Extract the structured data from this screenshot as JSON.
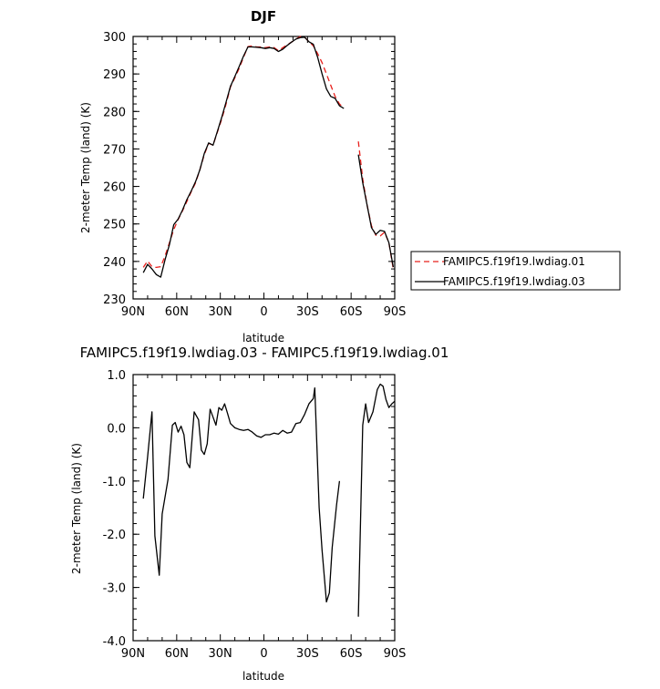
{
  "chart_data": [
    {
      "type": "line",
      "title": "DJF",
      "xlabel": "latitude",
      "ylabel": "2-meter Temp (land) (K)",
      "xlim": [
        90,
        -90
      ],
      "ylim": [
        230,
        300
      ],
      "x_ticks": [
        90,
        60,
        30,
        0,
        -30,
        -60,
        -90
      ],
      "x_tick_labels": [
        "90N",
        "60N",
        "30N",
        "0",
        "30S",
        "60S",
        "90S"
      ],
      "y_ticks": [
        230,
        240,
        250,
        260,
        270,
        280,
        290,
        300
      ],
      "y_tick_labels": [
        "230",
        "240",
        "250",
        "260",
        "270",
        "280",
        "290",
        "300"
      ],
      "legend_position": "right",
      "series": [
        {
          "name": "FAMIPC5.f19f19.lwdiag.01",
          "color": "#e8201c",
          "dash": true,
          "segments": [
            [
              [
                83,
                238.4
              ],
              [
                80,
                240.1
              ],
              [
                77,
                238.6
              ],
              [
                74,
                238.4
              ],
              [
                71,
                238.6
              ],
              [
                68,
                241.5
              ],
              [
                65,
                245.0
              ],
              [
                62,
                248.5
              ],
              [
                59,
                251.2
              ],
              [
                56,
                253.5
              ],
              [
                53,
                256.0
              ],
              [
                50,
                258.6
              ],
              [
                47,
                261.0
              ],
              [
                44,
                264.5
              ],
              [
                41,
                268.5
              ],
              [
                38,
                271.5
              ],
              [
                35,
                271.0
              ],
              [
                32,
                274.5
              ],
              [
                29,
                278.0
              ],
              [
                26,
                282.0
              ],
              [
                23,
                286.5
              ],
              [
                20,
                289.0
              ],
              [
                17,
                291.5
              ],
              [
                14,
                294.5
              ],
              [
                11,
                297.3
              ],
              [
                8,
                297.5
              ],
              [
                5,
                297.2
              ],
              [
                2,
                297.2
              ],
              [
                -1,
                297.0
              ],
              [
                -4,
                297.2
              ],
              [
                -7,
                297.0
              ],
              [
                -10,
                296.2
              ],
              [
                -13,
                297.0
              ],
              [
                -16,
                297.8
              ],
              [
                -19,
                298.5
              ],
              [
                -22,
                299.3
              ],
              [
                -25,
                300.0
              ],
              [
                -28,
                299.8
              ],
              [
                -31,
                298.6
              ],
              [
                -34,
                297.5
              ],
              [
                -37,
                295.4
              ],
              [
                -40,
                293.0
              ],
              [
                -43,
                290.0
              ],
              [
                -46,
                287.0
              ],
              [
                -49,
                284.0
              ],
              [
                -52,
                282.0
              ],
              [
                -55,
                281.0
              ]
            ],
            [
              [
                -65,
                272.0
              ],
              [
                -68,
                262.0
              ],
              [
                -71,
                255.0
              ],
              [
                -74,
                249.5
              ],
              [
                -77,
                247.0
              ],
              [
                -80,
                246.8
              ],
              [
                -83,
                247.8
              ],
              [
                -86,
                245.0
              ],
              [
                -89,
                238.0
              ]
            ]
          ]
        },
        {
          "name": "FAMIPC5.f19f19.lwdiag.03",
          "color": "#000000",
          "dash": false,
          "segments": [
            [
              [
                83,
                237.0
              ],
              [
                80,
                239.2
              ],
              [
                77,
                238.0
              ],
              [
                74,
                236.5
              ],
              [
                71,
                235.8
              ],
              [
                68,
                240.5
              ],
              [
                65,
                244.5
              ],
              [
                62,
                249.8
              ],
              [
                59,
                251.3
              ],
              [
                56,
                253.7
              ],
              [
                53,
                256.5
              ],
              [
                50,
                258.8
              ],
              [
                47,
                261.3
              ],
              [
                44,
                264.5
              ],
              [
                41,
                268.8
              ],
              [
                38,
                271.6
              ],
              [
                35,
                271.0
              ],
              [
                32,
                274.7
              ],
              [
                29,
                278.5
              ],
              [
                26,
                282.5
              ],
              [
                23,
                286.7
              ],
              [
                20,
                289.3
              ],
              [
                17,
                292.0
              ],
              [
                14,
                294.8
              ],
              [
                11,
                297.2
              ],
              [
                8,
                297.2
              ],
              [
                5,
                297.1
              ],
              [
                2,
                297.0
              ],
              [
                -1,
                296.8
              ],
              [
                -4,
                297.0
              ],
              [
                -7,
                296.8
              ],
              [
                -10,
                296.0
              ],
              [
                -13,
                296.6
              ],
              [
                -16,
                297.6
              ],
              [
                -19,
                298.5
              ],
              [
                -22,
                299.3
              ],
              [
                -25,
                299.7
              ],
              [
                -28,
                299.8
              ],
              [
                -31,
                298.6
              ],
              [
                -34,
                297.9
              ],
              [
                -37,
                294.4
              ],
              [
                -40,
                290.0
              ],
              [
                -43,
                286.0
              ],
              [
                -46,
                284.0
              ],
              [
                -49,
                283.5
              ],
              [
                -52,
                281.5
              ],
              [
                -55,
                280.8
              ]
            ],
            [
              [
                -65,
                268.5
              ],
              [
                -68,
                261.0
              ],
              [
                -71,
                255.0
              ],
              [
                -74,
                249.0
              ],
              [
                -77,
                247.2
              ],
              [
                -80,
                248.3
              ],
              [
                -83,
                248.0
              ],
              [
                -86,
                245.0
              ],
              [
                -89,
                238.5
              ]
            ]
          ]
        }
      ]
    },
    {
      "type": "line",
      "title": "FAMIPC5.f19f19.lwdiag.03 - FAMIPC5.f19f19.lwdiag.01",
      "xlabel": "latitude",
      "ylabel": "2-meter Temp (land) (K)",
      "xlim": [
        90,
        -90
      ],
      "ylim": [
        -4.0,
        1.0
      ],
      "x_ticks": [
        90,
        60,
        30,
        0,
        -30,
        -60,
        -90
      ],
      "x_tick_labels": [
        "90N",
        "60N",
        "30N",
        "0",
        "30S",
        "60S",
        "90S"
      ],
      "y_ticks": [
        -4.0,
        -3.0,
        -2.0,
        -1.0,
        0.0,
        1.0
      ],
      "y_tick_labels": [
        "-4.0",
        "-3.0",
        "-2.0",
        "-1.0",
        "0.0",
        "1.0"
      ],
      "series": [
        {
          "color": "#000000",
          "dash": false,
          "segments": [
            [
              [
                83,
                -1.33
              ],
              [
                80,
                -0.55
              ],
              [
                77,
                0.3
              ],
              [
                75,
                -2.03
              ],
              [
                72,
                -2.77
              ],
              [
                70,
                -1.62
              ],
              [
                66,
                -0.97
              ],
              [
                63,
                0.05
              ],
              [
                61,
                0.1
              ],
              [
                59,
                -0.08
              ],
              [
                57,
                0.03
              ],
              [
                55,
                -0.13
              ],
              [
                53,
                -0.65
              ],
              [
                51,
                -0.75
              ],
              [
                48,
                0.3
              ],
              [
                45,
                0.15
              ],
              [
                43,
                -0.42
              ],
              [
                41,
                -0.5
              ],
              [
                39,
                -0.3
              ],
              [
                37,
                0.35
              ],
              [
                35,
                0.2
              ],
              [
                33,
                0.05
              ],
              [
                31,
                0.38
              ],
              [
                29,
                0.33
              ],
              [
                27,
                0.45
              ],
              [
                25,
                0.27
              ],
              [
                23,
                0.08
              ],
              [
                20,
                0.0
              ],
              [
                17,
                -0.03
              ],
              [
                14,
                -0.05
              ],
              [
                11,
                -0.03
              ],
              [
                8,
                -0.08
              ],
              [
                5,
                -0.15
              ],
              [
                2,
                -0.18
              ],
              [
                -1,
                -0.13
              ],
              [
                -4,
                -0.13
              ],
              [
                -7,
                -0.1
              ],
              [
                -10,
                -0.12
              ],
              [
                -13,
                -0.05
              ],
              [
                -16,
                -0.1
              ],
              [
                -19,
                -0.08
              ],
              [
                -22,
                0.08
              ],
              [
                -25,
                0.1
              ],
              [
                -28,
                0.25
              ],
              [
                -31,
                0.45
              ],
              [
                -34,
                0.55
              ],
              [
                -35,
                0.75
              ],
              [
                -38,
                -1.5
              ],
              [
                -40,
                -2.3
              ],
              [
                -43,
                -3.27
              ],
              [
                -45,
                -3.1
              ],
              [
                -47,
                -2.25
              ],
              [
                -50,
                -1.45
              ],
              [
                -52,
                -1.0
              ]
            ],
            [
              [
                -65,
                -3.55
              ],
              [
                -68,
                0.05
              ],
              [
                -70,
                0.45
              ],
              [
                -72,
                0.1
              ],
              [
                -75,
                0.3
              ],
              [
                -78,
                0.72
              ],
              [
                -80,
                0.82
              ],
              [
                -82,
                0.78
              ],
              [
                -84,
                0.53
              ],
              [
                -86,
                0.38
              ],
              [
                -88,
                0.45
              ],
              [
                -90,
                0.5
              ]
            ]
          ]
        }
      ]
    }
  ]
}
